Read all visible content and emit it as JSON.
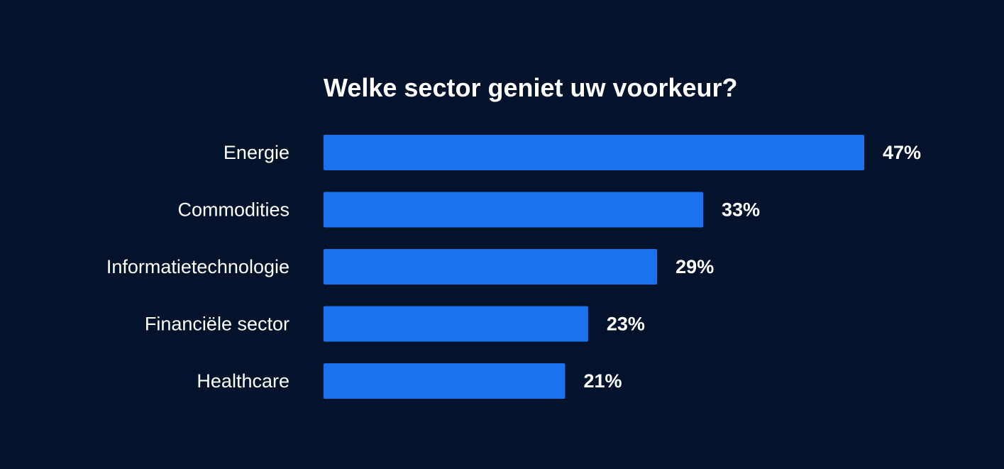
{
  "colors": {
    "background": "#02132b",
    "bar": "#1c71ee",
    "text": "#ffffff"
  },
  "chart_data": {
    "type": "bar",
    "orientation": "horizontal",
    "title": "Welke sector geniet uw voorkeur?",
    "categories": [
      "Energie",
      "Commodities",
      "Informatietechnologie",
      "Financiële sector",
      "Healthcare"
    ],
    "values": [
      47,
      33,
      29,
      23,
      21
    ],
    "value_labels": [
      "47%",
      "33%",
      "29%",
      "23%",
      "21%"
    ],
    "unit": "%",
    "xlim": [
      0,
      47
    ],
    "grid": false,
    "legend": "none"
  }
}
